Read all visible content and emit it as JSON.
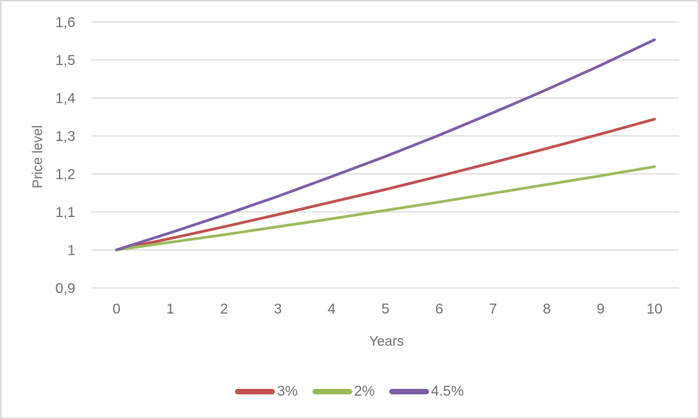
{
  "chart_data": {
    "type": "line",
    "title": "",
    "xlabel": "Years",
    "ylabel": "Price level",
    "x": [
      0,
      1,
      2,
      3,
      4,
      5,
      6,
      7,
      8,
      9,
      10
    ],
    "x_tick_labels": [
      "0",
      "1",
      "2",
      "3",
      "4",
      "5",
      "6",
      "7",
      "8",
      "9",
      "10"
    ],
    "ylim": [
      0.9,
      1.6
    ],
    "y_ticks": [
      0.9,
      1.0,
      1.1,
      1.2,
      1.3,
      1.4,
      1.5,
      1.6
    ],
    "y_tick_labels": [
      "0,9",
      "1",
      "1,1",
      "1,2",
      "1,3",
      "1,4",
      "1,5",
      "1,6"
    ],
    "grid": "horizontal",
    "legend_position": "bottom",
    "series": [
      {
        "name": "3%",
        "color": "#C0504D",
        "values": [
          1.0,
          1.03,
          1.061,
          1.093,
          1.126,
          1.159,
          1.194,
          1.23,
          1.267,
          1.305,
          1.344
        ]
      },
      {
        "name": "2%",
        "color": "#9BBB59",
        "values": [
          1.0,
          1.02,
          1.04,
          1.061,
          1.082,
          1.104,
          1.126,
          1.149,
          1.172,
          1.195,
          1.219
        ]
      },
      {
        "name": "4.5%",
        "color": "#7A5DA6",
        "values": [
          1.0,
          1.045,
          1.092,
          1.141,
          1.193,
          1.246,
          1.302,
          1.361,
          1.422,
          1.486,
          1.553
        ]
      }
    ],
    "colors": {
      "grid": "#DCDCDC",
      "text": "#6E6E6E",
      "frame_border": "#D8D8D8",
      "background": "#FFFFFF"
    }
  }
}
